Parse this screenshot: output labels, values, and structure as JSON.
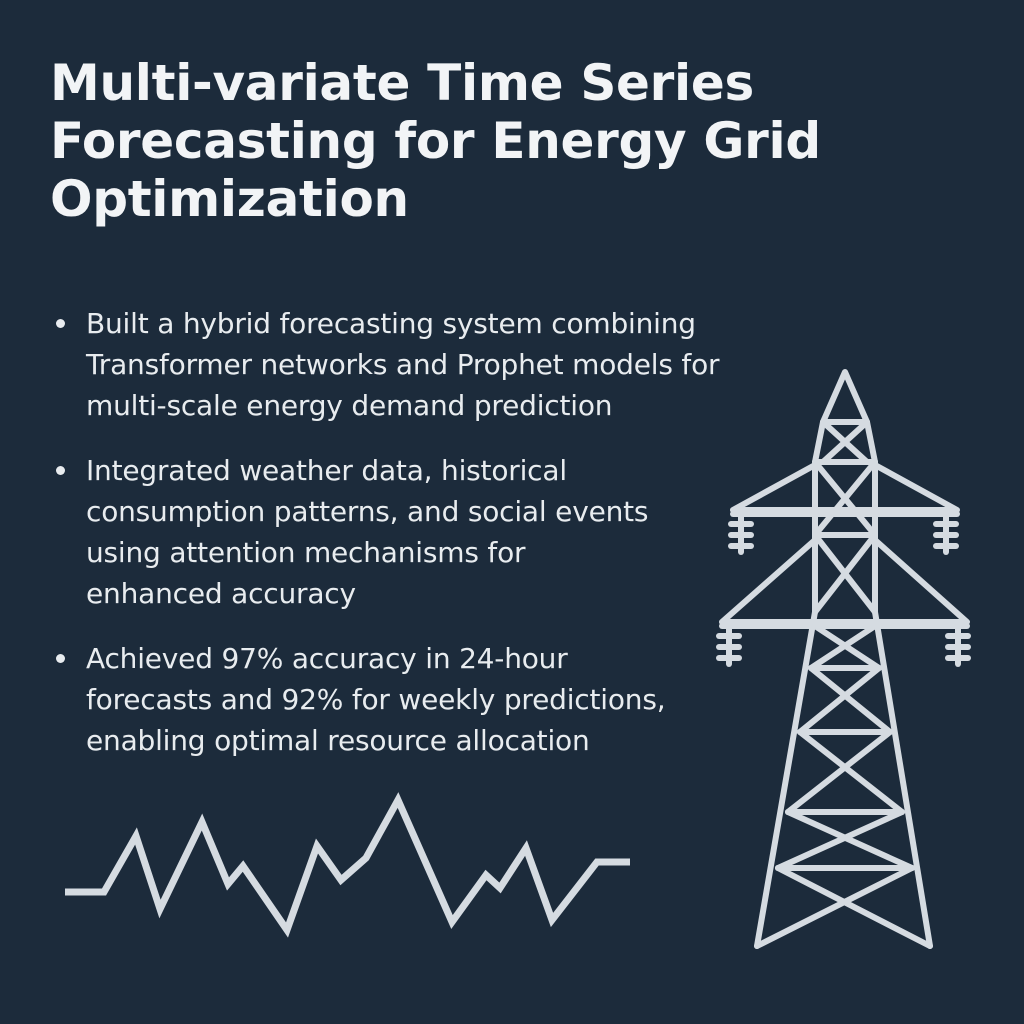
{
  "title": {
    "lines": [
      "Multi-variate Time Series",
      "Forecasting for Energy Grid",
      "Optimization"
    ]
  },
  "bullets": [
    {
      "lines": [
        "Built a hybrid forecasting system combining",
        "Transformer networks and Prophet models for",
        "multi-scale energy demand prediction"
      ]
    },
    {
      "lines": [
        "Integrated weather data, historical",
        "consumption patterns, and social events",
        "using attention mechanisms for",
        "enhanced accuracy"
      ]
    },
    {
      "lines": [
        "Achieved 97% accuracy in 24-hour",
        "forecasts and 92% for weekly predictions,",
        "enabling optimal resource allocation"
      ]
    }
  ],
  "graphics": {
    "wave_icon": "time-series-wave-icon",
    "tower_icon": "transmission-tower-icon"
  },
  "colors": {
    "background": "#1c2b3b",
    "foreground": "#eef1f4",
    "line_art": "#d5dbe1"
  }
}
